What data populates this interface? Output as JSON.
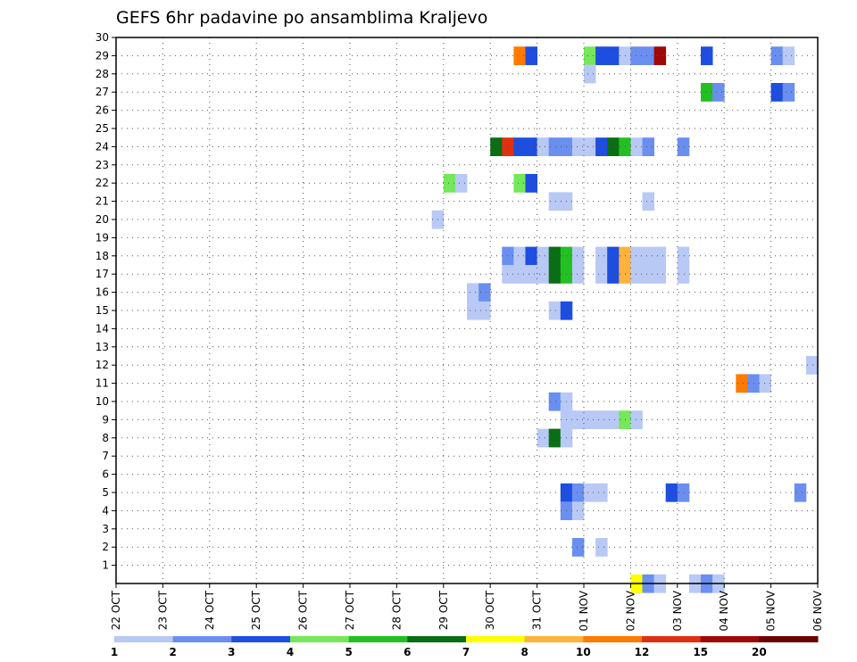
{
  "chart_data": {
    "type": "heatmap",
    "title": "GEFS 6hr padavine po ansamblima Kraljevo",
    "xlabel": "",
    "ylabel": "",
    "x_tick_labels": [
      "22 OCT",
      "23 OCT",
      "24 OCT",
      "25 OCT",
      "26 OCT",
      "27 OCT",
      "28 OCT",
      "29 OCT",
      "30 OCT",
      "31 OCT",
      "01 NOV",
      "02 NOV",
      "03 NOV",
      "04 NOV",
      "05 NOV",
      "06 NOV"
    ],
    "x_range_days": [
      0,
      15
    ],
    "y_tick_labels": [
      "1",
      "2",
      "3",
      "4",
      "5",
      "6",
      "7",
      "8",
      "9",
      "10",
      "11",
      "12",
      "13",
      "14",
      "15",
      "16",
      "17",
      "18",
      "19",
      "20",
      "21",
      "22",
      "23",
      "24",
      "25",
      "26",
      "27",
      "28",
      "29",
      "30"
    ],
    "y_range": [
      0,
      30
    ],
    "grid": true,
    "colorbar": {
      "labels": [
        "1",
        "2",
        "3",
        "4",
        "5",
        "6",
        "7",
        "8",
        "10",
        "12",
        "15",
        "20"
      ],
      "colors": [
        "#b9c9f5",
        "#6a8ff0",
        "#1e4ee0",
        "#74e85a",
        "#22c022",
        "#0a6e14",
        "#ffff00",
        "#ffb23c",
        "#ff7a00",
        "#e03010",
        "#a00808",
        "#6a0000"
      ]
    },
    "cells": [
      {
        "member": 29,
        "step": 34,
        "level": 9
      },
      {
        "member": 29,
        "step": 35,
        "level": 3
      },
      {
        "member": 29,
        "step": 40,
        "level": 4
      },
      {
        "member": 29,
        "step": 41,
        "level": 3
      },
      {
        "member": 29,
        "step": 42,
        "level": 3
      },
      {
        "member": 29,
        "step": 43,
        "level": 1
      },
      {
        "member": 29,
        "step": 44,
        "level": 2
      },
      {
        "member": 29,
        "step": 45,
        "level": 2
      },
      {
        "member": 29,
        "step": 46,
        "level": 11
      },
      {
        "member": 29,
        "step": 50,
        "level": 3
      },
      {
        "member": 29,
        "step": 56,
        "level": 2
      },
      {
        "member": 29,
        "step": 57,
        "level": 1
      },
      {
        "member": 28,
        "step": 40,
        "level": 1
      },
      {
        "member": 27,
        "step": 50,
        "level": 5
      },
      {
        "member": 27,
        "step": 51,
        "level": 2
      },
      {
        "member": 27,
        "step": 56,
        "level": 3
      },
      {
        "member": 27,
        "step": 57,
        "level": 2
      },
      {
        "member": 24,
        "step": 32,
        "level": 6
      },
      {
        "member": 24,
        "step": 33,
        "level": 10
      },
      {
        "member": 24,
        "step": 34,
        "level": 3
      },
      {
        "member": 24,
        "step": 35,
        "level": 3
      },
      {
        "member": 24,
        "step": 36,
        "level": 1
      },
      {
        "member": 24,
        "step": 37,
        "level": 2
      },
      {
        "member": 24,
        "step": 38,
        "level": 2
      },
      {
        "member": 24,
        "step": 39,
        "level": 1
      },
      {
        "member": 24,
        "step": 40,
        "level": 1
      },
      {
        "member": 24,
        "step": 41,
        "level": 3
      },
      {
        "member": 24,
        "step": 42,
        "level": 6
      },
      {
        "member": 24,
        "step": 43,
        "level": 5
      },
      {
        "member": 24,
        "step": 44,
        "level": 1
      },
      {
        "member": 24,
        "step": 45,
        "level": 2
      },
      {
        "member": 24,
        "step": 48,
        "level": 2
      },
      {
        "member": 22,
        "step": 28,
        "level": 4
      },
      {
        "member": 22,
        "step": 29,
        "level": 1
      },
      {
        "member": 22,
        "step": 34,
        "level": 4
      },
      {
        "member": 22,
        "step": 35,
        "level": 3
      },
      {
        "member": 21,
        "step": 37,
        "level": 1
      },
      {
        "member": 21,
        "step": 38,
        "level": 1
      },
      {
        "member": 21,
        "step": 45,
        "level": 1
      },
      {
        "member": 20,
        "step": 27,
        "level": 1
      },
      {
        "member": 18,
        "step": 33,
        "level": 2
      },
      {
        "member": 18,
        "step": 34,
        "level": 1
      },
      {
        "member": 18,
        "step": 35,
        "level": 3
      },
      {
        "member": 18,
        "step": 36,
        "level": 1
      },
      {
        "member": 18,
        "step": 37,
        "level": 6
      },
      {
        "member": 18,
        "step": 38,
        "level": 5
      },
      {
        "member": 18,
        "step": 39,
        "level": 1
      },
      {
        "member": 18,
        "step": 41,
        "level": 1
      },
      {
        "member": 18,
        "step": 42,
        "level": 3
      },
      {
        "member": 18,
        "step": 43,
        "level": 8
      },
      {
        "member": 18,
        "step": 44,
        "level": 1
      },
      {
        "member": 18,
        "step": 45,
        "level": 1
      },
      {
        "member": 18,
        "step": 46,
        "level": 1
      },
      {
        "member": 18,
        "step": 48,
        "level": 1
      },
      {
        "member": 17,
        "step": 33,
        "level": 1
      },
      {
        "member": 17,
        "step": 34,
        "level": 1
      },
      {
        "member": 17,
        "step": 35,
        "level": 1
      },
      {
        "member": 17,
        "step": 36,
        "level": 1
      },
      {
        "member": 17,
        "step": 37,
        "level": 6
      },
      {
        "member": 17,
        "step": 38,
        "level": 5
      },
      {
        "member": 17,
        "step": 39,
        "level": 1
      },
      {
        "member": 17,
        "step": 41,
        "level": 1
      },
      {
        "member": 17,
        "step": 42,
        "level": 3
      },
      {
        "member": 17,
        "step": 43,
        "level": 8
      },
      {
        "member": 17,
        "step": 44,
        "level": 1
      },
      {
        "member": 17,
        "step": 45,
        "level": 1
      },
      {
        "member": 17,
        "step": 46,
        "level": 1
      },
      {
        "member": 17,
        "step": 48,
        "level": 1
      },
      {
        "member": 16,
        "step": 30,
        "level": 1
      },
      {
        "member": 16,
        "step": 31,
        "level": 2
      },
      {
        "member": 15,
        "step": 30,
        "level": 1
      },
      {
        "member": 15,
        "step": 31,
        "level": 1
      },
      {
        "member": 15,
        "step": 37,
        "level": 1
      },
      {
        "member": 15,
        "step": 38,
        "level": 3
      },
      {
        "member": 12,
        "step": 59,
        "level": 1
      },
      {
        "member": 11,
        "step": 53,
        "level": 9
      },
      {
        "member": 11,
        "step": 54,
        "level": 2
      },
      {
        "member": 11,
        "step": 55,
        "level": 1
      },
      {
        "member": 10,
        "step": 37,
        "level": 2
      },
      {
        "member": 10,
        "step": 38,
        "level": 1
      },
      {
        "member": 9,
        "step": 38,
        "level": 1
      },
      {
        "member": 9,
        "step": 39,
        "level": 1
      },
      {
        "member": 9,
        "step": 40,
        "level": 1
      },
      {
        "member": 9,
        "step": 41,
        "level": 1
      },
      {
        "member": 9,
        "step": 42,
        "level": 1
      },
      {
        "member": 9,
        "step": 43,
        "level": 4
      },
      {
        "member": 9,
        "step": 44,
        "level": 1
      },
      {
        "member": 8,
        "step": 36,
        "level": 1
      },
      {
        "member": 8,
        "step": 37,
        "level": 6
      },
      {
        "member": 8,
        "step": 38,
        "level": 1
      },
      {
        "member": 5,
        "step": 38,
        "level": 3
      },
      {
        "member": 5,
        "step": 39,
        "level": 2
      },
      {
        "member": 5,
        "step": 40,
        "level": 1
      },
      {
        "member": 5,
        "step": 41,
        "level": 1
      },
      {
        "member": 5,
        "step": 47,
        "level": 3
      },
      {
        "member": 5,
        "step": 48,
        "level": 2
      },
      {
        "member": 5,
        "step": 58,
        "level": 2
      },
      {
        "member": 4,
        "step": 38,
        "level": 2
      },
      {
        "member": 4,
        "step": 39,
        "level": 1
      },
      {
        "member": 2,
        "step": 39,
        "level": 2
      },
      {
        "member": 2,
        "step": 41,
        "level": 1
      },
      {
        "member": 0,
        "step": 44,
        "level": 7
      },
      {
        "member": 0,
        "step": 45,
        "level": 2
      },
      {
        "member": 0,
        "step": 46,
        "level": 1
      },
      {
        "member": 0,
        "step": 49,
        "level": 1
      },
      {
        "member": 0,
        "step": 50,
        "level": 2
      },
      {
        "member": 0,
        "step": 51,
        "level": 1
      }
    ]
  }
}
